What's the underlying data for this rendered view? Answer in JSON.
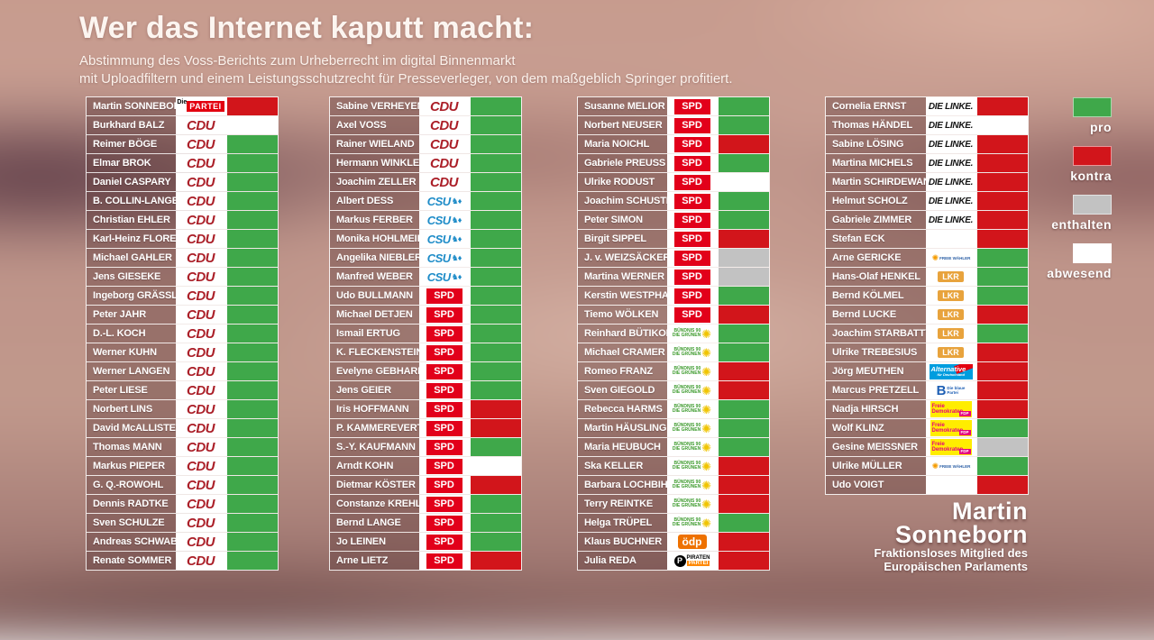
{
  "header": {
    "title": "Wer das Internet kaputt macht:",
    "subtitle1": "Abstimmung des Voss-Berichts zum Urheberrecht im digital Binnenmarkt",
    "subtitle2": "mit Uploadfiltern und einem Leistungsschutzrecht für Presseverleger, von dem maßgeblich Springer profitiert."
  },
  "legend": [
    {
      "label": "pro",
      "color": "#3FA84A"
    },
    {
      "label": "kontra",
      "color": "#D2151B"
    },
    {
      "label": "enthalten",
      "color": "#C2C2C2"
    },
    {
      "label": "abwesend",
      "color": "#FFFFFF"
    }
  ],
  "vote_colors": {
    "pro": "#3FA84A",
    "kontra": "#D2151B",
    "enthalten": "#C2C2C2",
    "abwesend": "#FFFFFF"
  },
  "parties": {
    "partei": {
      "prefix": "Die",
      "label": "PARTEI",
      "box": "#E3000F"
    },
    "cdu": {
      "label": "CDU",
      "color": "#AB1F28"
    },
    "csu": {
      "label": "CSU",
      "color": "#1E8CC8"
    },
    "spd": {
      "label": "SPD",
      "box": "#E2001A"
    },
    "gruene": {
      "line1": "BÜNDNIS 90",
      "line2": "DIE GRÜNEN",
      "color": "#3E9B2E",
      "sun": "#F0C400"
    },
    "oedp": {
      "label": "ödp",
      "box": "#EE7100"
    },
    "piraten": {
      "label1": "PIRATEN",
      "label2": "PARTEI",
      "box": "#FF8800"
    },
    "linke": {
      "label": "DIE LINKE.",
      "color": "#141414"
    },
    "fw": {
      "label": "FREIE WÄHLER",
      "color": "#2B5FA5",
      "sun": "#F59C00"
    },
    "lkr": {
      "label": "LKR",
      "box": "#E8A33D"
    },
    "afd": {
      "label": "Alternative",
      "sub": "für Deutschland",
      "box": "#009DDF",
      "arrow": "#E3000F"
    },
    "blaue": {
      "label": "B",
      "line1": "Die blaue",
      "line2": "Partei",
      "color": "#1E5FB4"
    },
    "fdp": {
      "line1": "Freie",
      "line2": "Demokraten",
      "badge": "FDP",
      "box": "#FFED00",
      "color": "#E5007D"
    },
    "none": {}
  },
  "footer": {
    "line1": "Martin",
    "line2": "Sonneborn",
    "line3": "Fraktionsloses Mitglied des",
    "line4": "Europäischen Parlaments"
  },
  "chart_data": {
    "type": "table",
    "title": "Wer das Internet kaputt macht:",
    "legend_values": [
      "pro",
      "kontra",
      "enthalten",
      "abwesend"
    ],
    "columns": [
      [
        {
          "name": "Martin SONNEBORN",
          "party": "partei",
          "vote": "kontra"
        },
        {
          "name": "Burkhard BALZ",
          "party": "cdu",
          "vote": "abwesend"
        },
        {
          "name": "Reimer BÖGE",
          "party": "cdu",
          "vote": "pro"
        },
        {
          "name": "Elmar BROK",
          "party": "cdu",
          "vote": "pro"
        },
        {
          "name": "Daniel CASPARY",
          "party": "cdu",
          "vote": "pro"
        },
        {
          "name": "B. COLLIN-LANGEN",
          "party": "cdu",
          "vote": "pro"
        },
        {
          "name": "Christian EHLER",
          "party": "cdu",
          "vote": "pro"
        },
        {
          "name": "Karl-Heinz FLORENZ",
          "party": "cdu",
          "vote": "pro"
        },
        {
          "name": "Michael GAHLER",
          "party": "cdu",
          "vote": "pro"
        },
        {
          "name": "Jens GIESEKE",
          "party": "cdu",
          "vote": "pro"
        },
        {
          "name": "Ingeborg GRÄSSLE",
          "party": "cdu",
          "vote": "pro"
        },
        {
          "name": "Peter JAHR",
          "party": "cdu",
          "vote": "pro"
        },
        {
          "name": "D.-L. KOCH",
          "party": "cdu",
          "vote": "pro"
        },
        {
          "name": "Werner KUHN",
          "party": "cdu",
          "vote": "pro"
        },
        {
          "name": "Werner LANGEN",
          "party": "cdu",
          "vote": "pro"
        },
        {
          "name": "Peter LIESE",
          "party": "cdu",
          "vote": "pro"
        },
        {
          "name": "Norbert LINS",
          "party": "cdu",
          "vote": "pro"
        },
        {
          "name": "David McALLISTER",
          "party": "cdu",
          "vote": "pro"
        },
        {
          "name": "Thomas MANN",
          "party": "cdu",
          "vote": "pro"
        },
        {
          "name": "Markus PIEPER",
          "party": "cdu",
          "vote": "pro"
        },
        {
          "name": "G. Q.-ROWOHL",
          "party": "cdu",
          "vote": "pro"
        },
        {
          "name": "Dennis RADTKE",
          "party": "cdu",
          "vote": "pro"
        },
        {
          "name": "Sven SCHULZE",
          "party": "cdu",
          "vote": "pro"
        },
        {
          "name": "Andreas SCHWAB",
          "party": "cdu",
          "vote": "pro"
        },
        {
          "name": "Renate SOMMER",
          "party": "cdu",
          "vote": "pro"
        }
      ],
      [
        {
          "name": "Sabine VERHEYEN",
          "party": "cdu",
          "vote": "pro"
        },
        {
          "name": "Axel VOSS",
          "party": "cdu",
          "vote": "pro"
        },
        {
          "name": "Rainer WIELAND",
          "party": "cdu",
          "vote": "pro"
        },
        {
          "name": "Hermann WINKLER",
          "party": "cdu",
          "vote": "pro"
        },
        {
          "name": "Joachim ZELLER",
          "party": "cdu",
          "vote": "pro"
        },
        {
          "name": "Albert DESS",
          "party": "csu",
          "vote": "pro"
        },
        {
          "name": "Markus FERBER",
          "party": "csu",
          "vote": "pro"
        },
        {
          "name": "Monika HOHLMEIER",
          "party": "csu",
          "vote": "pro"
        },
        {
          "name": "Angelika NIEBLER",
          "party": "csu",
          "vote": "pro"
        },
        {
          "name": "Manfred WEBER",
          "party": "csu",
          "vote": "pro"
        },
        {
          "name": "Udo BULLMANN",
          "party": "spd",
          "vote": "pro"
        },
        {
          "name": "Michael DETJEN",
          "party": "spd",
          "vote": "pro"
        },
        {
          "name": "Ismail ERTUG",
          "party": "spd",
          "vote": "pro"
        },
        {
          "name": "K. FLECKENSTEIN",
          "party": "spd",
          "vote": "pro"
        },
        {
          "name": "Evelyne GEBHARDT",
          "party": "spd",
          "vote": "pro"
        },
        {
          "name": "Jens GEIER",
          "party": "spd",
          "vote": "pro"
        },
        {
          "name": "Iris HOFFMANN",
          "party": "spd",
          "vote": "kontra"
        },
        {
          "name": "P. KAMMEREVERT",
          "party": "spd",
          "vote": "kontra"
        },
        {
          "name": "S.-Y. KAUFMANN",
          "party": "spd",
          "vote": "pro"
        },
        {
          "name": "Arndt KOHN",
          "party": "spd",
          "vote": "abwesend"
        },
        {
          "name": "Dietmar KÖSTER",
          "party": "spd",
          "vote": "kontra"
        },
        {
          "name": "Constanze KREHL",
          "party": "spd",
          "vote": "pro"
        },
        {
          "name": "Bernd LANGE",
          "party": "spd",
          "vote": "pro"
        },
        {
          "name": "Jo LEINEN",
          "party": "spd",
          "vote": "pro"
        },
        {
          "name": "Arne LIETZ",
          "party": "spd",
          "vote": "kontra"
        }
      ],
      [
        {
          "name": "Susanne MELIOR",
          "party": "spd",
          "vote": "pro"
        },
        {
          "name": "Norbert NEUSER",
          "party": "spd",
          "vote": "pro"
        },
        {
          "name": "Maria NOICHL",
          "party": "spd",
          "vote": "kontra"
        },
        {
          "name": "Gabriele PREUSS",
          "party": "spd",
          "vote": "pro"
        },
        {
          "name": "Ulrike RODUST",
          "party": "spd",
          "vote": "abwesend"
        },
        {
          "name": "Joachim SCHUSTER",
          "party": "spd",
          "vote": "pro"
        },
        {
          "name": "Peter SIMON",
          "party": "spd",
          "vote": "pro"
        },
        {
          "name": "Birgit SIPPEL",
          "party": "spd",
          "vote": "kontra"
        },
        {
          "name": "J. v. WEIZSÄCKER",
          "party": "spd",
          "vote": "enthalten"
        },
        {
          "name": "Martina WERNER",
          "party": "spd",
          "vote": "enthalten"
        },
        {
          "name": "Kerstin WESTPHAL",
          "party": "spd",
          "vote": "pro"
        },
        {
          "name": "Tiemo WÖLKEN",
          "party": "spd",
          "vote": "kontra"
        },
        {
          "name": "Reinhard BÜTIKOFER",
          "party": "gruene",
          "vote": "pro"
        },
        {
          "name": "Michael CRAMER",
          "party": "gruene",
          "vote": "pro"
        },
        {
          "name": "Romeo FRANZ",
          "party": "gruene",
          "vote": "kontra"
        },
        {
          "name": "Sven GIEGOLD",
          "party": "gruene",
          "vote": "kontra"
        },
        {
          "name": "Rebecca HARMS",
          "party": "gruene",
          "vote": "pro"
        },
        {
          "name": "Martin HÄUSLING",
          "party": "gruene",
          "vote": "pro"
        },
        {
          "name": "Maria HEUBUCH",
          "party": "gruene",
          "vote": "pro"
        },
        {
          "name": "Ska KELLER",
          "party": "gruene",
          "vote": "kontra"
        },
        {
          "name": "Barbara LOCHBIHLER",
          "party": "gruene",
          "vote": "kontra"
        },
        {
          "name": "Terry REINTKE",
          "party": "gruene",
          "vote": "kontra"
        },
        {
          "name": "Helga TRÜPEL",
          "party": "gruene",
          "vote": "pro"
        },
        {
          "name": "Klaus BUCHNER",
          "party": "oedp",
          "vote": "kontra"
        },
        {
          "name": "Julia REDA",
          "party": "piraten",
          "vote": "kontra"
        }
      ],
      [
        {
          "name": "Cornelia ERNST",
          "party": "linke",
          "vote": "kontra"
        },
        {
          "name": "Thomas HÄNDEL",
          "party": "linke",
          "vote": "abwesend"
        },
        {
          "name": "Sabine LÖSING",
          "party": "linke",
          "vote": "kontra"
        },
        {
          "name": "Martina MICHELS",
          "party": "linke",
          "vote": "kontra"
        },
        {
          "name": "Martin SCHIRDEWAN",
          "party": "linke",
          "vote": "kontra"
        },
        {
          "name": "Helmut SCHOLZ",
          "party": "linke",
          "vote": "kontra"
        },
        {
          "name": "Gabriele ZIMMER",
          "party": "linke",
          "vote": "kontra"
        },
        {
          "name": "Stefan ECK",
          "party": "none",
          "vote": "kontra"
        },
        {
          "name": "Arne GERICKE",
          "party": "fw",
          "vote": "pro"
        },
        {
          "name": "Hans-Olaf HENKEL",
          "party": "lkr",
          "vote": "pro"
        },
        {
          "name": "Bernd KÖLMEL",
          "party": "lkr",
          "vote": "pro"
        },
        {
          "name": "Bernd LUCKE",
          "party": "lkr",
          "vote": "kontra"
        },
        {
          "name": "Joachim STARBATTY",
          "party": "lkr",
          "vote": "pro"
        },
        {
          "name": "Ulrike TREBESIUS",
          "party": "lkr",
          "vote": "kontra"
        },
        {
          "name": "Jörg MEUTHEN",
          "party": "afd",
          "vote": "kontra"
        },
        {
          "name": "Marcus PRETZELL",
          "party": "blaue",
          "vote": "kontra"
        },
        {
          "name": "Nadja HIRSCH",
          "party": "fdp",
          "vote": "kontra"
        },
        {
          "name": "Wolf KLINZ",
          "party": "fdp",
          "vote": "pro"
        },
        {
          "name": "Gesine MEISSNER",
          "party": "fdp",
          "vote": "enthalten"
        },
        {
          "name": "Ulrike MÜLLER",
          "party": "fw",
          "vote": "pro"
        },
        {
          "name": "Udo VOIGT",
          "party": "none",
          "vote": "kontra"
        }
      ]
    ]
  }
}
